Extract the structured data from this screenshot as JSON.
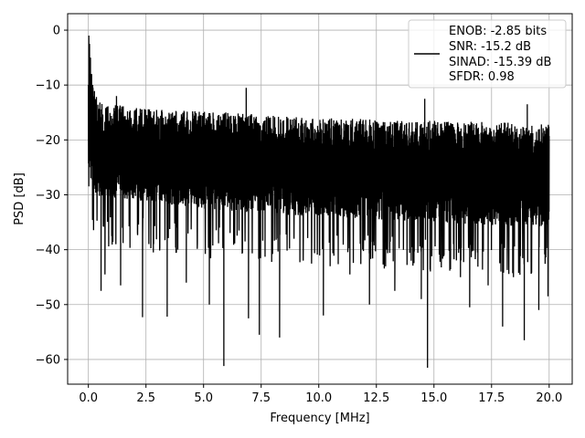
{
  "chart_data": {
    "type": "line",
    "title": "",
    "xlabel": "Frequency [MHz]",
    "ylabel": "PSD [dB]",
    "xlim": [
      -0.9,
      21.0
    ],
    "ylim": [
      -64.5,
      3.0
    ],
    "xticks": [
      0.0,
      2.5,
      5.0,
      7.5,
      10.0,
      12.5,
      15.0,
      17.5,
      20.0
    ],
    "xtick_labels": [
      "0.0",
      "2.5",
      "5.0",
      "7.5",
      "10.0",
      "12.5",
      "15.0",
      "17.5",
      "20.0"
    ],
    "yticks": [
      0,
      -10,
      -20,
      -30,
      -40,
      -50,
      -60
    ],
    "ytick_labels": [
      "0",
      "−10",
      "−20",
      "−30",
      "−40",
      "−50",
      "−60"
    ],
    "grid": true,
    "legend_position": "top-right",
    "legend_lines": [
      "ENOB: -2.85 bits",
      "SNR: -15.2 dB",
      "SINAD: -15.39 dB",
      "SFDR: 0.98"
    ],
    "series": [
      {
        "color": "#000000",
        "x_range": [
          0.0,
          20.0
        ],
        "band_upper": [
          [
            0.0,
            -4
          ],
          [
            0.3,
            -12
          ],
          [
            1.0,
            -13.5
          ],
          [
            3.0,
            -14.5
          ],
          [
            6.0,
            -15
          ],
          [
            10.0,
            -16
          ],
          [
            15.0,
            -16.5
          ],
          [
            20.0,
            -17
          ]
        ],
        "band_lower": [
          [
            0.0,
            -30
          ],
          [
            2.0,
            -31
          ],
          [
            6.0,
            -33
          ],
          [
            10.0,
            -34
          ],
          [
            15.0,
            -35
          ],
          [
            20.0,
            -36
          ]
        ],
        "peaks": [
          [
            0.02,
            -1.0
          ],
          [
            0.05,
            -2.5
          ],
          [
            0.09,
            -5.0
          ],
          [
            0.14,
            -8.0
          ],
          [
            0.2,
            -10.5
          ],
          [
            0.26,
            -11.5
          ],
          [
            0.35,
            -12.5
          ],
          [
            1.22,
            -12.0
          ],
          [
            6.85,
            -10.5
          ],
          [
            14.6,
            -12.5
          ],
          [
            19.05,
            -13.5
          ]
        ],
        "dips": [
          [
            0.55,
            -47.5
          ],
          [
            0.72,
            -44.5
          ],
          [
            1.4,
            -46.5
          ],
          [
            2.35,
            -52.3
          ],
          [
            2.82,
            -40.5
          ],
          [
            3.42,
            -52.2
          ],
          [
            4.25,
            -46.0
          ],
          [
            5.25,
            -50.0
          ],
          [
            5.88,
            -61.2
          ],
          [
            6.95,
            -52.5
          ],
          [
            7.42,
            -55.5
          ],
          [
            8.3,
            -56.0
          ],
          [
            10.2,
            -52.0
          ],
          [
            11.35,
            -44.5
          ],
          [
            12.2,
            -50.0
          ],
          [
            13.3,
            -47.5
          ],
          [
            14.45,
            -49.0
          ],
          [
            14.72,
            -61.5
          ],
          [
            16.15,
            -45.0
          ],
          [
            16.55,
            -50.5
          ],
          [
            17.35,
            -46.5
          ],
          [
            17.98,
            -54.0
          ],
          [
            18.45,
            -45.0
          ],
          [
            18.92,
            -56.5
          ],
          [
            19.55,
            -51.0
          ],
          [
            19.95,
            -48.5
          ]
        ]
      }
    ]
  }
}
